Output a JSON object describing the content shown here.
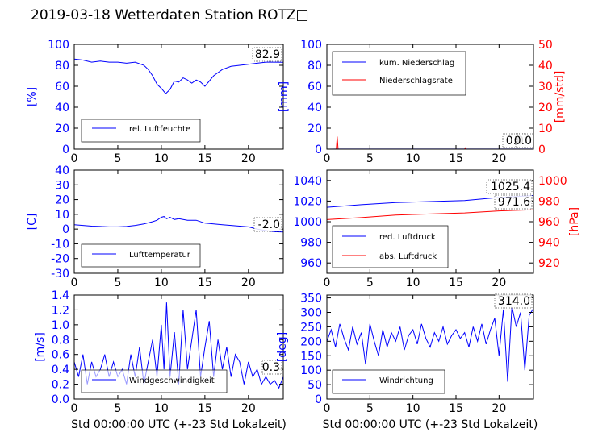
{
  "figure": {
    "title": "2019-03-18 Wetterdaten Station ROTZ□"
  },
  "chart_data": [
    {
      "type": "line",
      "ylabel": "[%]",
      "xlim": [
        0,
        24
      ],
      "ylim": [
        0,
        100
      ],
      "xticks": [
        0,
        5,
        10,
        15,
        20
      ],
      "yticks": [
        0,
        20,
        40,
        60,
        80,
        100
      ],
      "series": [
        {
          "name": "rel. Luftfeuchte",
          "color": "#0000ff",
          "x": [
            0,
            1,
            2,
            3,
            4,
            5,
            6,
            7,
            8,
            8.5,
            9,
            9.5,
            10,
            10.5,
            11,
            11.5,
            12,
            12.5,
            13,
            13.5,
            14,
            14.5,
            15,
            15.5,
            16,
            17,
            18,
            19,
            20,
            21,
            22,
            23,
            24
          ],
          "y": [
            86,
            85,
            83,
            84,
            83,
            83,
            82,
            83,
            80,
            76,
            70,
            62,
            58,
            53,
            57,
            65,
            64,
            68,
            66,
            63,
            66,
            64,
            60,
            65,
            70,
            76,
            79,
            80,
            81,
            82,
            83,
            83,
            82.9
          ]
        }
      ],
      "annotation": "82.9"
    },
    {
      "type": "line",
      "ylabel": "[mm]",
      "y2label": "[mm/std]",
      "xlim": [
        0,
        24
      ],
      "ylim": [
        0,
        100
      ],
      "y2lim": [
        0,
        50
      ],
      "xticks": [
        0,
        5,
        10,
        15,
        20
      ],
      "yticks": [
        0,
        20,
        40,
        60,
        80,
        100
      ],
      "y2ticks": [
        0,
        10,
        20,
        30,
        40,
        50
      ],
      "series": [
        {
          "name": "kum. Niederschlag",
          "color": "#0000ff",
          "axis": "left",
          "x": [
            0,
            1.2,
            5,
            10,
            15,
            20,
            24
          ],
          "y": [
            0,
            0.1,
            0.1,
            0.1,
            0.1,
            0.1,
            0.1
          ]
        },
        {
          "name": "Niederschlagsrate",
          "color": "#ff0000",
          "axis": "right",
          "x": [
            0,
            1.1,
            1.2,
            1.3,
            2,
            16,
            16.1,
            16.2,
            24
          ],
          "y": [
            0,
            0,
            6,
            0,
            0,
            0,
            0.6,
            0,
            0
          ]
        }
      ],
      "annotations": [
        "0.0",
        "0.0"
      ]
    },
    {
      "type": "line",
      "ylabel": "[C]",
      "xlim": [
        0,
        24
      ],
      "ylim": [
        -30,
        40
      ],
      "xticks": [
        0,
        5,
        10,
        15,
        20
      ],
      "yticks": [
        -30,
        -20,
        -10,
        0,
        10,
        20,
        30,
        40
      ],
      "series": [
        {
          "name": "Lufttemperatur",
          "color": "#0000ff",
          "x": [
            0,
            1,
            2,
            3,
            4,
            5,
            6,
            7,
            8,
            9,
            9.5,
            10,
            10.3,
            10.6,
            11,
            11.5,
            12,
            13,
            14,
            15,
            16,
            17,
            18,
            19,
            20,
            21,
            22,
            23,
            24
          ],
          "y": [
            3,
            2.5,
            2,
            1.8,
            1.5,
            1.5,
            1.8,
            2.5,
            3.5,
            5,
            6,
            8,
            8.5,
            7,
            8,
            6.5,
            7,
            6,
            6,
            4,
            3.5,
            3,
            2.5,
            2,
            1.5,
            0,
            -1,
            -1.8,
            -2.0
          ]
        }
      ],
      "annotation": "-2.0"
    },
    {
      "type": "line",
      "xlim": [
        0,
        24
      ],
      "ylim": [
        950,
        1050
      ],
      "y2lim": [
        910,
        1010
      ],
      "y2label": "[hPa]",
      "xticks": [
        0,
        5,
        10,
        15,
        20
      ],
      "yticks": [
        960,
        980,
        1000,
        1020,
        1040
      ],
      "y2ticks": [
        920,
        940,
        960,
        980,
        1000
      ],
      "series": [
        {
          "name": "red. Luftdruck",
          "color": "#0000ff",
          "axis": "left",
          "x": [
            0,
            4,
            8,
            12,
            16,
            20,
            24
          ],
          "y": [
            1014,
            1016.5,
            1018.5,
            1019.5,
            1020.5,
            1023.5,
            1025.4
          ]
        },
        {
          "name": "abs. Luftdruck",
          "color": "#ff0000",
          "axis": "right",
          "x": [
            0,
            4,
            8,
            12,
            16,
            20,
            24
          ],
          "y": [
            962,
            964,
            966.5,
            967.5,
            968.5,
            970.5,
            971.6
          ]
        }
      ],
      "annotations": [
        "1025.4",
        "971.6"
      ]
    },
    {
      "type": "line",
      "ylabel": "[m/s]",
      "xlabel": "Std 00:00:00 UTC (+-23 Std Lokalzeit)",
      "xlim": [
        0,
        24
      ],
      "ylim": [
        0,
        1.4
      ],
      "xticks": [
        0,
        5,
        10,
        15,
        20
      ],
      "yticks": [
        0.0,
        0.2,
        0.4,
        0.6,
        0.8,
        1.0,
        1.2,
        1.4
      ],
      "series": [
        {
          "name": "Windgeschwindigkeit",
          "color": "#0000ff",
          "x": [
            0,
            0.5,
            1,
            1.5,
            2,
            2.5,
            3,
            3.5,
            4,
            4.5,
            5,
            5.5,
            6,
            6.5,
            7,
            7.5,
            8,
            8.5,
            9,
            9.5,
            10,
            10.3,
            10.6,
            11,
            11.5,
            12,
            12.5,
            13,
            13.5,
            14,
            14.5,
            15,
            15.5,
            16,
            16.5,
            17,
            17.5,
            18,
            18.5,
            19,
            19.5,
            20,
            20.5,
            21,
            21.5,
            22,
            22.5,
            23,
            23.5,
            24
          ],
          "y": [
            0.5,
            0.3,
            0.6,
            0.2,
            0.5,
            0.3,
            0.4,
            0.6,
            0.3,
            0.5,
            0.3,
            0.4,
            0.2,
            0.6,
            0.3,
            0.7,
            0.2,
            0.5,
            0.8,
            0.3,
            1.0,
            0.4,
            1.3,
            0.3,
            0.9,
            0.2,
            1.2,
            0.4,
            0.8,
            1.2,
            0.3,
            0.7,
            1.05,
            0.3,
            0.8,
            0.4,
            0.7,
            0.3,
            0.6,
            0.5,
            0.2,
            0.5,
            0.3,
            0.4,
            0.2,
            0.3,
            0.2,
            0.25,
            0.15,
            0.3
          ]
        }
      ],
      "annotation": "0.3"
    },
    {
      "type": "line",
      "ylabel": "[deg]",
      "xlabel": "Std 00:00:00 UTC (+-23 Std Lokalzeit)",
      "xlim": [
        0,
        24
      ],
      "ylim": [
        0,
        360
      ],
      "xticks": [
        0,
        5,
        10,
        15,
        20
      ],
      "yticks": [
        0,
        50,
        100,
        150,
        200,
        250,
        300,
        350
      ],
      "series": [
        {
          "name": "Windrichtung",
          "color": "#0000ff",
          "x": [
            0,
            0.5,
            1,
            1.5,
            2,
            2.5,
            3,
            3.5,
            4,
            4.5,
            5,
            5.5,
            6,
            6.5,
            7,
            7.5,
            8,
            8.5,
            9,
            9.5,
            10,
            10.5,
            11,
            11.5,
            12,
            12.5,
            13,
            13.5,
            14,
            14.5,
            15,
            15.5,
            16,
            16.5,
            17,
            17.5,
            18,
            18.5,
            19,
            19.5,
            20,
            20.5,
            21,
            21.5,
            22,
            22.5,
            23,
            23.5,
            24
          ],
          "y": [
            200,
            240,
            180,
            260,
            210,
            170,
            250,
            190,
            230,
            120,
            260,
            200,
            150,
            240,
            180,
            230,
            200,
            250,
            170,
            220,
            240,
            190,
            260,
            210,
            180,
            230,
            200,
            250,
            190,
            220,
            240,
            210,
            230,
            180,
            250,
            200,
            260,
            190,
            240,
            280,
            150,
            310,
            60,
            320,
            250,
            300,
            100,
            290,
            314
          ]
        }
      ],
      "annotation": "314.0"
    }
  ]
}
